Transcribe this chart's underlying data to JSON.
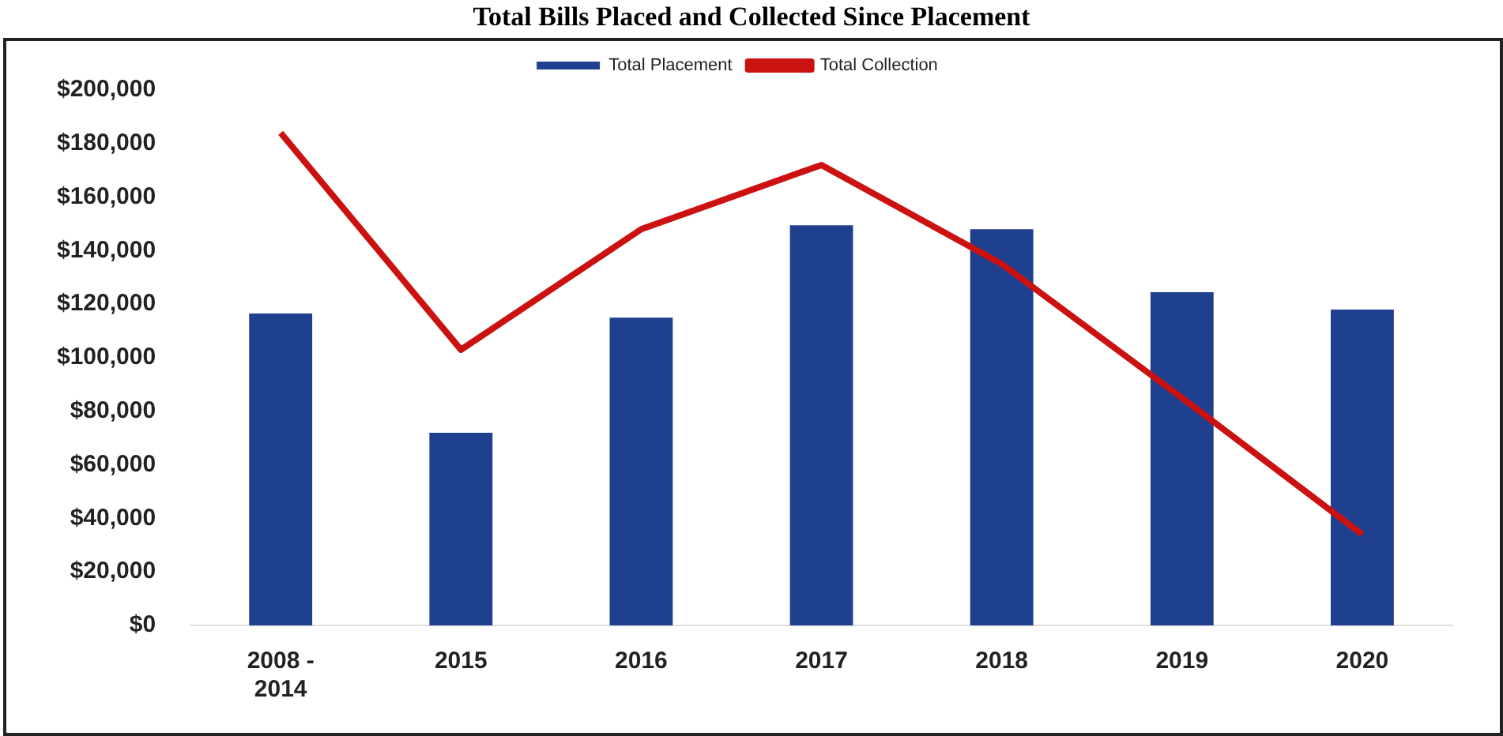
{
  "chart_data": {
    "type": "bar",
    "title": "Total Bills Placed and Collected Since Placement",
    "categories": [
      "2008 - 2014",
      "2015",
      "2016",
      "2017",
      "2018",
      "2019",
      "2020"
    ],
    "series": [
      {
        "name": "Total Placement",
        "color": "#1f3f8f",
        "values": [
          116500,
          72000,
          115000,
          149500,
          148000,
          124500,
          118000
        ]
      },
      {
        "name": "Total Collection",
        "type": "line",
        "color": "#cc1111",
        "values": [
          184000,
          103000,
          148000,
          172000,
          135000,
          85000,
          34000
        ]
      }
    ],
    "ylim": [
      0,
      200000
    ],
    "yticks": [
      {
        "value": 0,
        "label": "$0"
      },
      {
        "value": 20000,
        "label": "$20,000"
      },
      {
        "value": 40000,
        "label": "$40,000"
      },
      {
        "value": 60000,
        "label": "$60,000"
      },
      {
        "value": 80000,
        "label": "$80,000"
      },
      {
        "value": 100000,
        "label": "$100,000"
      },
      {
        "value": 120000,
        "label": "$120,000"
      },
      {
        "value": 140000,
        "label": "$140,000"
      },
      {
        "value": 160000,
        "label": "$160,000"
      },
      {
        "value": 180000,
        "label": "$180,000"
      },
      {
        "value": 200000,
        "label": "$200,000"
      }
    ],
    "grid": false,
    "legend": "top",
    "marker": "none"
  }
}
